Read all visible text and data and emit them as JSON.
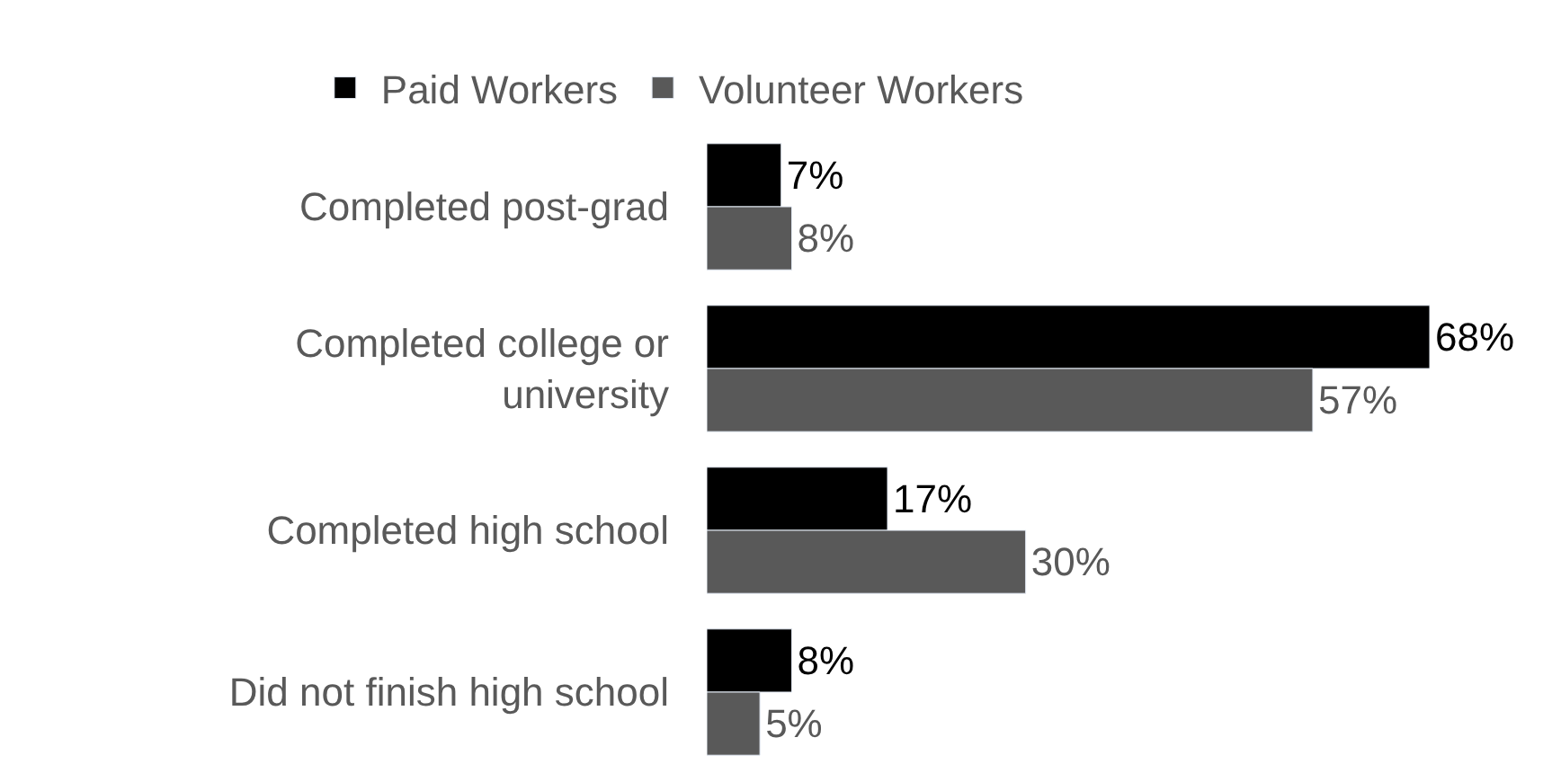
{
  "chart_data": {
    "type": "bar",
    "orientation": "horizontal",
    "categories": [
      "Completed post-grad",
      "Completed college or university",
      "Completed high school",
      "Did not finish high school"
    ],
    "series": [
      {
        "name": "Paid Workers",
        "color": "#000000",
        "values": [
          7,
          68,
          17,
          8
        ],
        "value_labels": [
          "7%",
          "68%",
          "17%",
          "8%"
        ]
      },
      {
        "name": "Volunteer Workers",
        "color": "#595959",
        "values": [
          8,
          57,
          30,
          5
        ],
        "value_labels": [
          "8%",
          "57%",
          "30%",
          "5%"
        ]
      }
    ],
    "legend": "top"
  }
}
